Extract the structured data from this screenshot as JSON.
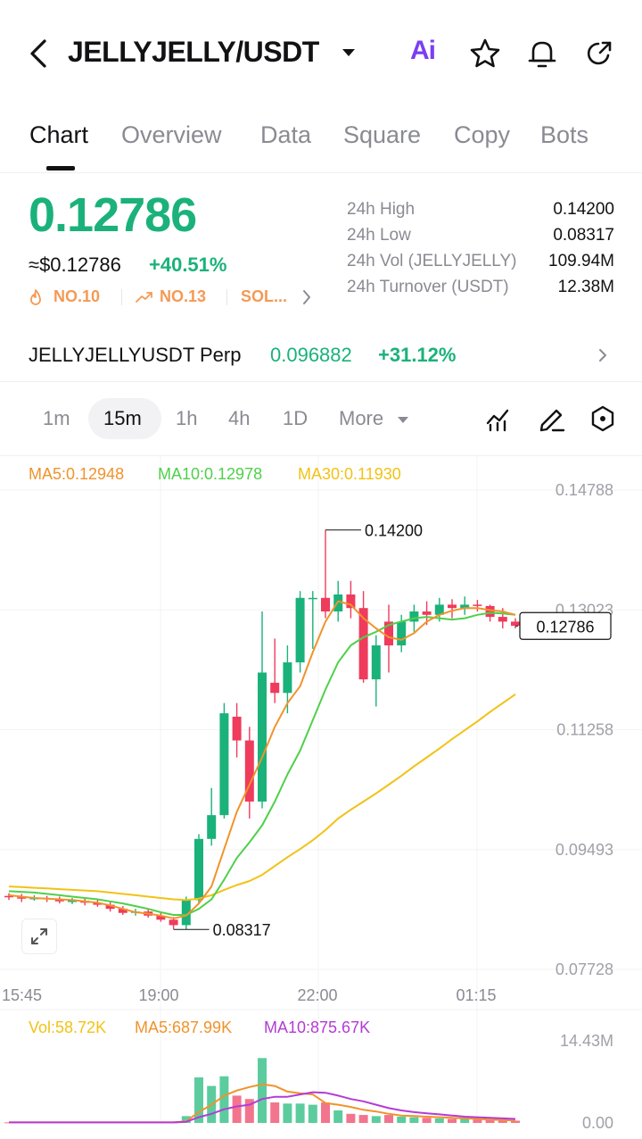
{
  "header": {
    "title": "JELLYJELLY/USDT",
    "ai_label": "Ai",
    "icons": [
      "back-icon",
      "caret-down-icon",
      "ai-icon",
      "star-icon",
      "bell-icon",
      "share-icon"
    ]
  },
  "tabs": [
    "Chart",
    "Overview",
    "Data",
    "Square",
    "Copy",
    "Bots"
  ],
  "price": {
    "last": "0.12786",
    "fiat": "≈$0.12786",
    "change": "+40.51%",
    "ranks": [
      "NO.10",
      "NO.13",
      "SOL..."
    ]
  },
  "stats": [
    {
      "label": "24h  High",
      "value": "0.14200"
    },
    {
      "label": "24h  Low",
      "value": "0.08317"
    },
    {
      "label": "24h  Vol (JELLYJELLY)",
      "value": "109.94M"
    },
    {
      "label": "24h  Turnover (USDT)",
      "value": "12.38M"
    }
  ],
  "perp": {
    "name": "JELLYJELLYUSDT Perp",
    "price": "0.096882",
    "change": "+31.12%"
  },
  "intervals": [
    "1m",
    "15m",
    "1h",
    "4h",
    "1D",
    "More"
  ],
  "active_interval": "15m",
  "colors": {
    "up": "#1ab27a",
    "down": "#ef3b5c",
    "ma5": "#f0932b",
    "ma10": "#4fd04a",
    "ma30": "#f2c215",
    "vol_ma10": "#b43bd6"
  },
  "indicators": {
    "ma5": "MA5:0.12948",
    "ma10": "MA10:0.12978",
    "ma30": "MA30:0.11930",
    "vol": "Vol:58.72K",
    "vol_ma5": "MA5:687.99K",
    "vol_ma10": "MA10:875.67K"
  },
  "chart_data": {
    "type": "candlestick",
    "y_ticks": [
      "0.14788",
      "0.13023",
      "0.11258",
      "0.09493",
      "0.07728"
    ],
    "y_range": [
      0.07728,
      0.14788
    ],
    "x_ticks": [
      "15:45",
      "19:00",
      "22:00",
      "01:15"
    ],
    "high_marker": "0.14200",
    "low_marker": "0.08317",
    "last_price_tag": "0.12786",
    "volume_ticks": [
      "14.43M",
      "0.00"
    ],
    "volume_range": [
      0,
      14.43
    ],
    "candles": [
      [
        0.0881,
        0.0879,
        0.0885,
        0.0875
      ],
      [
        0.0879,
        0.0877,
        0.0884,
        0.0872
      ],
      [
        0.0877,
        0.0878,
        0.0882,
        0.0874
      ],
      [
        0.0878,
        0.0876,
        0.0881,
        0.0872
      ],
      [
        0.0876,
        0.0873,
        0.088,
        0.087
      ],
      [
        0.0873,
        0.0874,
        0.0878,
        0.0869
      ],
      [
        0.0874,
        0.0871,
        0.0877,
        0.0867
      ],
      [
        0.0871,
        0.0868,
        0.0875,
        0.0865
      ],
      [
        0.0868,
        0.0862,
        0.0872,
        0.0858
      ],
      [
        0.0862,
        0.0856,
        0.0866,
        0.0853
      ],
      [
        0.0856,
        0.0858,
        0.0862,
        0.0852
      ],
      [
        0.0858,
        0.0852,
        0.0861,
        0.0849
      ],
      [
        0.0852,
        0.0846,
        0.0857,
        0.0843
      ],
      [
        0.0846,
        0.0838,
        0.085,
        0.0832
      ],
      [
        0.0838,
        0.0875,
        0.088,
        0.0832
      ],
      [
        0.0875,
        0.0965,
        0.0972,
        0.087
      ],
      [
        0.0965,
        0.1,
        0.104,
        0.0955
      ],
      [
        0.1,
        0.115,
        0.1165,
        0.0995
      ],
      [
        0.1145,
        0.111,
        0.1165,
        0.1085
      ],
      [
        0.111,
        0.102,
        0.113,
        0.0995
      ],
      [
        0.102,
        0.121,
        0.13,
        0.101
      ],
      [
        0.1195,
        0.118,
        0.126,
        0.1165
      ],
      [
        0.118,
        0.1225,
        0.125,
        0.115
      ],
      [
        0.1225,
        0.132,
        0.133,
        0.121
      ],
      [
        0.132,
        0.132,
        0.133,
        0.1245
      ],
      [
        0.132,
        0.13,
        0.142,
        0.129
      ],
      [
        0.13,
        0.1325,
        0.1345,
        0.1285
      ],
      [
        0.1325,
        0.1305,
        0.1345,
        0.129
      ],
      [
        0.1305,
        0.12,
        0.133,
        0.1195
      ],
      [
        0.12,
        0.125,
        0.1265,
        0.116
      ],
      [
        0.1285,
        0.125,
        0.131,
        0.121
      ],
      [
        0.125,
        0.1285,
        0.1295,
        0.124
      ],
      [
        0.1285,
        0.13,
        0.131,
        0.127
      ],
      [
        0.13,
        0.1295,
        0.1315,
        0.128
      ],
      [
        0.1295,
        0.131,
        0.132,
        0.1285
      ],
      [
        0.131,
        0.1305,
        0.1318,
        0.129
      ],
      [
        0.1305,
        0.131,
        0.1322,
        0.1295
      ],
      [
        0.131,
        0.1308,
        0.1317,
        0.13
      ],
      [
        0.1308,
        0.1292,
        0.131,
        0.1285
      ],
      [
        0.1292,
        0.1285,
        0.1305,
        0.1275
      ],
      [
        0.1285,
        0.1279,
        0.129,
        0.1275
      ]
    ],
    "ma5": [
      0.0882,
      0.088,
      0.0878,
      0.0877,
      0.0876,
      0.0875,
      0.0873,
      0.0871,
      0.0867,
      0.0862,
      0.0857,
      0.0855,
      0.0852,
      0.0848,
      0.0852,
      0.087,
      0.0895,
      0.095,
      0.1005,
      0.1045,
      0.1085,
      0.113,
      0.1165,
      0.119,
      0.124,
      0.1285,
      0.1315,
      0.131,
      0.129,
      0.1275,
      0.1262,
      0.1258,
      0.1268,
      0.1285,
      0.1295,
      0.1301,
      0.1305,
      0.1305,
      0.1302,
      0.13,
      0.1295
    ],
    "ma10": [
      0.0888,
      0.0887,
      0.0886,
      0.0884,
      0.0882,
      0.088,
      0.0878,
      0.0876,
      0.0873,
      0.087,
      0.0866,
      0.0862,
      0.0857,
      0.0853,
      0.0853,
      0.0862,
      0.0876,
      0.0905,
      0.0937,
      0.096,
      0.0985,
      0.102,
      0.106,
      0.1095,
      0.114,
      0.1185,
      0.1225,
      0.125,
      0.1262,
      0.127,
      0.128,
      0.1285,
      0.129,
      0.1292,
      0.129,
      0.1288,
      0.129,
      0.1295,
      0.1298,
      0.1297,
      0.1295
    ],
    "ma30": [
      0.0895,
      0.0894,
      0.0893,
      0.0892,
      0.0891,
      0.089,
      0.0889,
      0.0888,
      0.0886,
      0.0884,
      0.0882,
      0.088,
      0.0878,
      0.0876,
      0.0875,
      0.0877,
      0.0882,
      0.089,
      0.0897,
      0.0903,
      0.0912,
      0.0925,
      0.0938,
      0.095,
      0.0963,
      0.0978,
      0.0995,
      0.1008,
      0.102,
      0.1032,
      0.1045,
      0.1058,
      0.1072,
      0.1085,
      0.1098,
      0.1112,
      0.1125,
      0.1138,
      0.1152,
      0.1165,
      0.1178
    ],
    "volume": [
      0.1,
      0.1,
      0.1,
      0.1,
      0.1,
      0.1,
      0.1,
      0.1,
      0.1,
      0.1,
      0.1,
      0.1,
      0.1,
      0.1,
      1.2,
      8.0,
      6.5,
      8.2,
      4.8,
      4.2,
      11.4,
      3.6,
      3.4,
      3.4,
      3.2,
      3.6,
      2.2,
      1.6,
      1.4,
      1.2,
      1.4,
      1.1,
      1.0,
      0.9,
      0.8,
      0.7,
      0.7,
      0.6,
      0.6,
      0.5,
      0.4
    ],
    "vol_ma5": [
      0.1,
      0.1,
      0.1,
      0.1,
      0.1,
      0.1,
      0.1,
      0.1,
      0.1,
      0.1,
      0.1,
      0.1,
      0.1,
      0.1,
      0.3,
      1.9,
      3.2,
      4.8,
      5.7,
      6.3,
      6.8,
      6.5,
      5.5,
      5.2,
      5.0,
      3.5,
      3.2,
      2.8,
      2.3,
      2.0,
      1.6,
      1.3,
      1.2,
      1.1,
      1.0,
      0.9,
      0.8,
      0.7,
      0.6,
      0.5,
      0.4
    ],
    "vol_ma10": [
      0.1,
      0.1,
      0.1,
      0.1,
      0.1,
      0.1,
      0.1,
      0.1,
      0.1,
      0.1,
      0.1,
      0.1,
      0.1,
      0.1,
      0.2,
      1.0,
      1.6,
      2.4,
      2.9,
      3.2,
      4.2,
      4.6,
      4.6,
      5.0,
      5.4,
      5.3,
      4.8,
      4.2,
      3.8,
      3.2,
      2.6,
      2.2,
      1.9,
      1.7,
      1.5,
      1.3,
      1.1,
      1.0,
      0.9,
      0.8,
      0.7
    ]
  }
}
